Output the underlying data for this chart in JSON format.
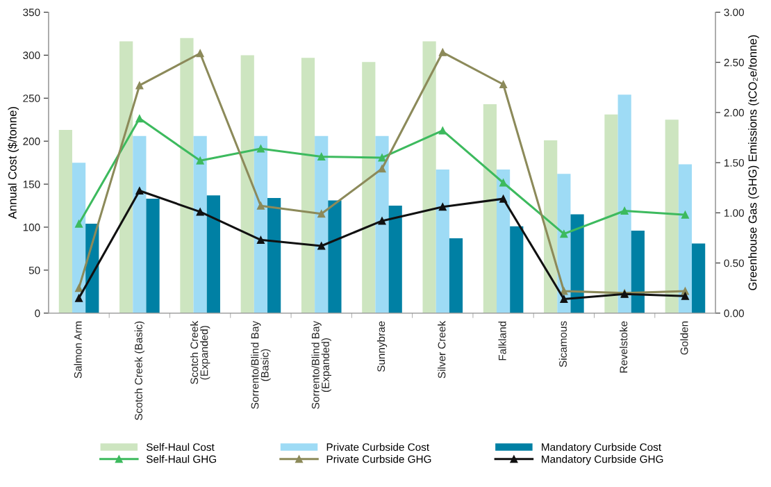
{
  "chart_data": {
    "type": "bar",
    "ylabel": "Annual Cost ($/tonne)",
    "y2label": "Greenhouse Gas (GHG) Emissions (tCO₂e/tonne)",
    "categories": [
      "Salmon Arm",
      "Scotch Creek (Basic)",
      "Scotch Creek\n(Expanded)",
      "Sorrento/Blind Bay\n(Basic)",
      "Sorrento/Blind Bay\n(Expanded)",
      "Sunnybrae",
      "Silver Creek",
      "Falkland",
      "Sicamous",
      "Revelstoke",
      "Golden"
    ],
    "series": [
      {
        "name": "Self-Haul Cost",
        "color": "#cde5c0",
        "values": [
          213,
          316,
          320,
          300,
          297,
          292,
          316,
          243,
          201,
          231,
          225
        ]
      },
      {
        "name": "Private Curbside Cost",
        "color": "#9edbf5",
        "values": [
          175,
          206,
          206,
          206,
          206,
          206,
          167,
          167,
          162,
          254,
          173
        ]
      },
      {
        "name": "Mandatory Curbside Cost",
        "color": "#0080a4",
        "values": [
          104,
          133,
          137,
          134,
          131,
          125,
          87,
          101,
          115,
          96,
          81
        ]
      },
      {
        "name": "Self-Haul GHG",
        "type": "line",
        "axis": "y2",
        "color": "#3dba5e",
        "values": [
          0.89,
          1.94,
          1.52,
          1.64,
          1.56,
          1.55,
          1.82,
          1.3,
          0.79,
          1.02,
          0.98
        ]
      },
      {
        "name": "Private Curbside GHG",
        "type": "line",
        "axis": "y2",
        "color": "#8c8a5a",
        "values": [
          0.25,
          2.27,
          2.59,
          1.07,
          0.99,
          1.44,
          2.6,
          2.28,
          0.22,
          0.2,
          0.22
        ]
      },
      {
        "name": "Mandatory Curbside GHG",
        "type": "line",
        "axis": "y2",
        "color": "#111111",
        "values": [
          0.15,
          1.22,
          1.01,
          0.73,
          0.67,
          0.92,
          1.06,
          1.14,
          0.14,
          0.19,
          0.17
        ]
      }
    ],
    "ylim": [
      0,
      350
    ],
    "yticks": [
      0,
      50,
      100,
      150,
      200,
      250,
      300,
      350
    ],
    "y2lim": [
      0,
      3
    ],
    "y2ticks": [
      {
        "value": 0,
        "label": "0.00"
      },
      {
        "value": 0.5,
        "label": "0.50"
      },
      {
        "value": 1,
        "label": "1.00"
      },
      {
        "value": 1.5,
        "label": "1.50"
      },
      {
        "value": 2,
        "label": "2.00"
      },
      {
        "value": 2.5,
        "label": "2.50"
      },
      {
        "value": 3,
        "label": "3.00"
      }
    ],
    "marker": "triangle",
    "line_style": "solid",
    "grid": false,
    "legend": "bottom"
  }
}
